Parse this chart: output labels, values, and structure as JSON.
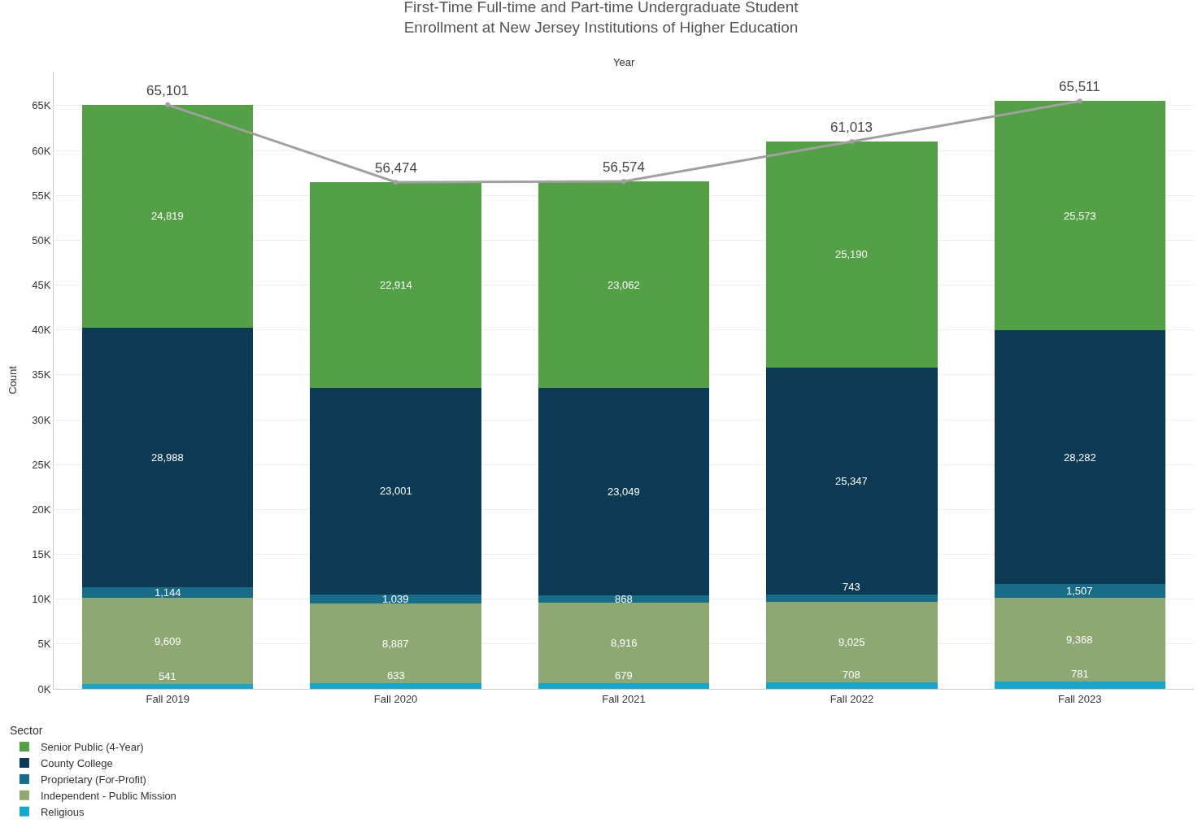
{
  "chart_data": {
    "type": "bar",
    "stacked": true,
    "title": "First-Time Full-time and Part-time Undergraduate Student\nEnrollment at New Jersey Institutions of Higher Education",
    "xlabel": "Year",
    "ylabel": "Count",
    "legend_title": "Sector",
    "legend": "bottom left",
    "grid": "y",
    "categories": [
      "Fall 2019",
      "Fall 2020",
      "Fall 2021",
      "Fall 2022",
      "Fall 2023"
    ],
    "ylim": [
      0,
      68800
    ],
    "yticks": [
      {
        "value": 0,
        "label": "0K"
      },
      {
        "value": 5000,
        "label": "5K"
      },
      {
        "value": 10000,
        "label": "10K"
      },
      {
        "value": 15000,
        "label": "15K"
      },
      {
        "value": 20000,
        "label": "20K"
      },
      {
        "value": 25000,
        "label": "25K"
      },
      {
        "value": 30000,
        "label": "30K"
      },
      {
        "value": 35000,
        "label": "35K"
      },
      {
        "value": 40000,
        "label": "40K"
      },
      {
        "value": 45000,
        "label": "45K"
      },
      {
        "value": 50000,
        "label": "50K"
      },
      {
        "value": 55000,
        "label": "55K"
      },
      {
        "value": 60000,
        "label": "60K"
      },
      {
        "value": 65000,
        "label": "65K"
      }
    ],
    "series": [
      {
        "name": "Religious",
        "color": "#17a6cc",
        "values": [
          541,
          633,
          679,
          708,
          781
        ],
        "value_labels": [
          "541",
          "633",
          "679",
          "708",
          "781"
        ]
      },
      {
        "name": "Independent - Public Mission",
        "color": "#8ea874",
        "values": [
          9609,
          8887,
          8916,
          9025,
          9368
        ],
        "value_labels": [
          "9,609",
          "8,887",
          "8,916",
          "9,025",
          "9,368"
        ]
      },
      {
        "name": "Proprietary (For-Profit)",
        "color": "#176d88",
        "values": [
          1144,
          1039,
          868,
          743,
          1507
        ],
        "value_labels": [
          "1,144",
          "1,039",
          "868",
          "743",
          "1,507"
        ]
      },
      {
        "name": "County College",
        "color": "#0c3954",
        "values": [
          28988,
          23001,
          23049,
          25347,
          28282
        ],
        "value_labels": [
          "28,988",
          "23,001",
          "23,049",
          "25,347",
          "28,282"
        ]
      },
      {
        "name": "Senior Public (4-Year)",
        "color": "#54a046",
        "values": [
          24819,
          22914,
          23062,
          25190,
          25573
        ],
        "value_labels": [
          "24,819",
          "22,914",
          "23,062",
          "25,190",
          "25,573"
        ]
      },
      {
        "type": "line",
        "color": "#a0a0a0",
        "marker": "circle",
        "values": [
          65101,
          56474,
          56574,
          61013,
          65511
        ],
        "value_labels": [
          "65,101",
          "56,474",
          "56,574",
          "61,013",
          "65,511"
        ]
      }
    ]
  }
}
